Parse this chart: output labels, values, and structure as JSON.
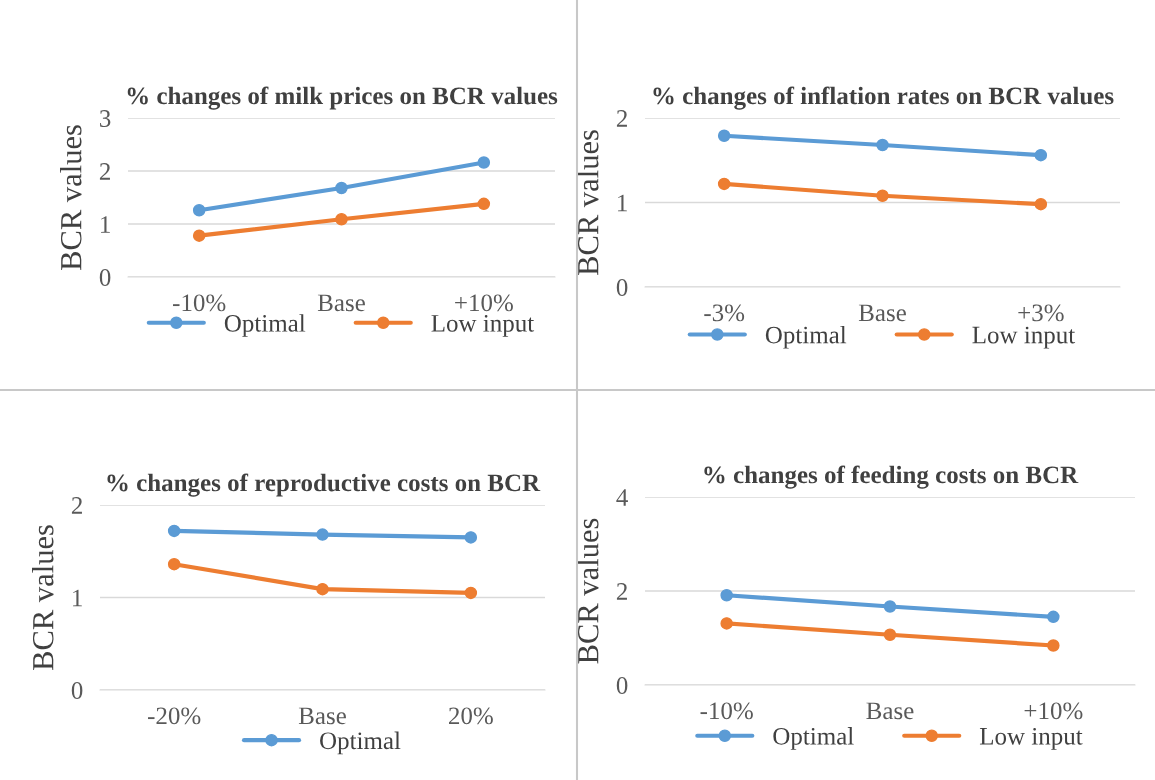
{
  "chart_data": [
    {
      "type": "line",
      "title": "% changes of milk prices on BCR values",
      "ylabel": "BCR values",
      "categories": [
        "-10%",
        "Base",
        "+10%"
      ],
      "series": [
        {
          "name": "Optimal",
          "color": "#5b9bd5",
          "values": [
            1.26,
            1.68,
            2.16
          ]
        },
        {
          "name": "Low input",
          "color": "#ed7d31",
          "values": [
            0.78,
            1.09,
            1.38
          ]
        }
      ],
      "ylim": [
        0,
        3
      ],
      "yticks": [
        0,
        1,
        2,
        3
      ],
      "grid": "y",
      "legend": "bottom",
      "marker": "circle"
    },
    {
      "type": "line",
      "title": "% changes of inflation rates on BCR values",
      "ylabel": "BCR values",
      "categories": [
        "-3%",
        "Base",
        "+3%"
      ],
      "series": [
        {
          "name": "Optimal",
          "color": "#5b9bd5",
          "values": [
            1.79,
            1.68,
            1.56
          ]
        },
        {
          "name": "Low input",
          "color": "#ed7d31",
          "values": [
            1.22,
            1.08,
            0.98
          ]
        }
      ],
      "ylim": [
        0,
        2
      ],
      "yticks": [
        0,
        1,
        2
      ],
      "grid": "y",
      "legend": "bottom",
      "marker": "circle"
    },
    {
      "type": "line",
      "title": "% changes of reproductive costs on BCR",
      "ylabel": "BCR values",
      "categories": [
        "-20%",
        "Base",
        "20%"
      ],
      "series": [
        {
          "name": "Optimal",
          "color": "#5b9bd5",
          "values": [
            1.72,
            1.68,
            1.65
          ]
        },
        {
          "color": "#ed7d31",
          "values": [
            1.36,
            1.09,
            1.05
          ]
        }
      ],
      "ylim": [
        0,
        2
      ],
      "yticks": [
        0,
        1,
        2
      ],
      "grid": "y",
      "legend": "bottom",
      "marker": "circle"
    },
    {
      "type": "line",
      "title": "% changes of feeding costs on BCR",
      "ylabel": "BCR values",
      "categories": [
        "-10%",
        "Base",
        "+10%"
      ],
      "series": [
        {
          "name": "Optimal",
          "color": "#5b9bd5",
          "values": [
            1.91,
            1.67,
            1.45
          ]
        },
        {
          "name": "Low input",
          "color": "#ed7d31",
          "values": [
            1.31,
            1.07,
            0.84
          ]
        }
      ],
      "ylim": [
        0,
        4
      ],
      "yticks": [
        0,
        2,
        4
      ],
      "grid": "y",
      "legend": "bottom",
      "marker": "circle"
    }
  ]
}
